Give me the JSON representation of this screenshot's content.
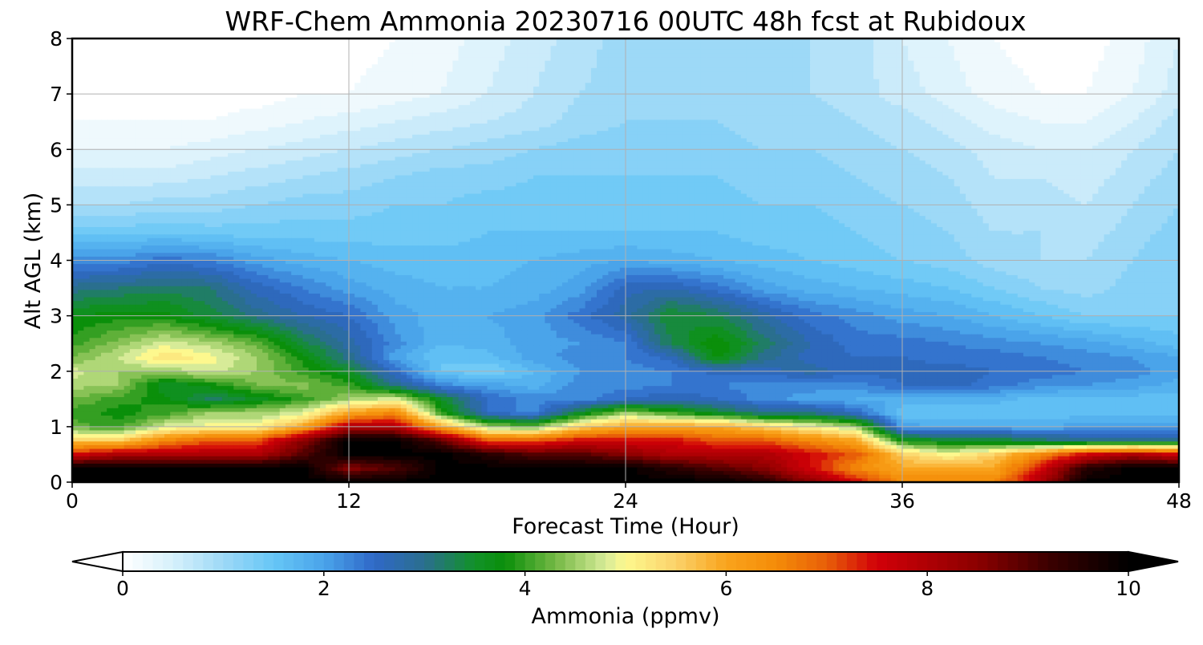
{
  "chart_data": {
    "type": "heatmap",
    "title": "WRF-Chem Ammonia  20230716 00UTC 48h fcst at Rubidoux",
    "xlabel": "Forecast Time (Hour)",
    "ylabel": "Alt AGL (km)",
    "xlim": [
      0,
      48
    ],
    "ylim": [
      0,
      8
    ],
    "x_ticks": [
      "0",
      "12",
      "24",
      "36",
      "48"
    ],
    "y_ticks": [
      "0",
      "1",
      "2",
      "3",
      "4",
      "5",
      "6",
      "7",
      "8"
    ],
    "grid": true,
    "colorbar": {
      "label": "Ammonia  (ppmv)",
      "range": [
        0,
        10
      ],
      "ticks": [
        "0",
        "2",
        "4",
        "6",
        "8",
        "10"
      ],
      "extend": "both",
      "colors": [
        {
          "v": 0.0,
          "c": "#ffffff"
        },
        {
          "v": 0.5,
          "c": "#d6f0fb"
        },
        {
          "v": 1.0,
          "c": "#9dd9f7"
        },
        {
          "v": 1.5,
          "c": "#66c6f6"
        },
        {
          "v": 2.0,
          "c": "#4aa4ea"
        },
        {
          "v": 2.5,
          "c": "#2f68c7"
        },
        {
          "v": 3.0,
          "c": "#2a6f8e"
        },
        {
          "v": 3.5,
          "c": "#129129"
        },
        {
          "v": 3.8,
          "c": "#0a8f0a"
        },
        {
          "v": 4.3,
          "c": "#74b845"
        },
        {
          "v": 4.8,
          "c": "#d7eb98"
        },
        {
          "v": 5.0,
          "c": "#fdf88e"
        },
        {
          "v": 5.5,
          "c": "#fbd26a"
        },
        {
          "v": 6.0,
          "c": "#f9a31c"
        },
        {
          "v": 6.5,
          "c": "#f48c08"
        },
        {
          "v": 7.0,
          "c": "#e85e08"
        },
        {
          "v": 7.5,
          "c": "#d10008"
        },
        {
          "v": 8.5,
          "c": "#8c0000"
        },
        {
          "v": 9.2,
          "c": "#3c0000"
        },
        {
          "v": 10.0,
          "c": "#000000"
        }
      ]
    },
    "field": {
      "x_hours": [
        0,
        2,
        4,
        6,
        8,
        10,
        12,
        14,
        16,
        18,
        20,
        22,
        24,
        26,
        28,
        30,
        32,
        34,
        36,
        38,
        40,
        42,
        44,
        46,
        48
      ],
      "z_km": [
        0,
        0.25,
        0.5,
        0.75,
        1.0,
        1.25,
        1.5,
        1.75,
        2.0,
        2.25,
        2.5,
        3.0,
        3.5,
        4.0,
        4.5,
        5.0,
        5.5,
        6.0,
        6.5,
        7.0,
        8.0
      ],
      "ppmv": [
        [
          10,
          10,
          10,
          10,
          10,
          10,
          10,
          10,
          10,
          10,
          10,
          10,
          10,
          10,
          10,
          9.5,
          8.5,
          7.5,
          6.5,
          6.5,
          6.5,
          8.0,
          10,
          10,
          10
        ],
        [
          10,
          10,
          10,
          10,
          10,
          10,
          8.5,
          9,
          10,
          10,
          10,
          10,
          10,
          9.5,
          9,
          8.5,
          7.5,
          6.5,
          6.0,
          6.0,
          6.0,
          7.5,
          9.5,
          10,
          10
        ],
        [
          7.5,
          8.0,
          8.0,
          8.0,
          8.0,
          9.0,
          10,
          10,
          10,
          9.5,
          9.0,
          9.0,
          8.5,
          8.0,
          8.0,
          8.0,
          7.5,
          7.0,
          5.5,
          5.0,
          5.5,
          6.5,
          7.5,
          8.0,
          7.5
        ],
        [
          5.5,
          5.5,
          6.5,
          7.0,
          7.0,
          8.5,
          10,
          10,
          9.0,
          7.0,
          7.0,
          7.5,
          7.5,
          7.5,
          7.0,
          7.0,
          6.5,
          6.0,
          3.8,
          3.5,
          3.5,
          3.2,
          3.0,
          3.0,
          3.0
        ],
        [
          4.2,
          4.0,
          4.8,
          5.0,
          5.0,
          6.0,
          8.0,
          8.0,
          6.0,
          4.5,
          4.2,
          5.5,
          6.0,
          6.0,
          6.0,
          5.5,
          5.0,
          4.5,
          2.0,
          1.9,
          1.9,
          1.9,
          2.0,
          2.0,
          2.0
        ],
        [
          4.0,
          3.8,
          4.0,
          4.5,
          4.5,
          4.8,
          6.0,
          6.5,
          4.0,
          2.5,
          2.2,
          3.5,
          4.5,
          4.0,
          3.5,
          3.0,
          3.0,
          2.5,
          1.5,
          1.5,
          1.5,
          1.5,
          1.6,
          1.6,
          1.6
        ],
        [
          4.3,
          4.0,
          3.8,
          3.2,
          3.6,
          4.0,
          4.5,
          4.8,
          3.5,
          2.5,
          2.2,
          2.2,
          2.5,
          2.7,
          2.5,
          2.2,
          2.0,
          1.9,
          1.9,
          1.8,
          1.8,
          1.6,
          1.6,
          1.6,
          1.6
        ],
        [
          4.6,
          4.5,
          3.5,
          3.8,
          4.3,
          4.4,
          4.0,
          3.0,
          2.2,
          2.0,
          1.8,
          2.2,
          2.2,
          2.3,
          2.3,
          2.2,
          2.2,
          2.2,
          2.5,
          2.6,
          2.4,
          2.2,
          2.1,
          2.0,
          1.8
        ],
        [
          4.8,
          4.5,
          4.5,
          4.8,
          4.5,
          4.0,
          3.5,
          2.5,
          1.5,
          1.3,
          1.7,
          2.1,
          2.2,
          2.3,
          2.6,
          2.6,
          2.8,
          2.6,
          2.6,
          2.6,
          2.5,
          2.4,
          2.3,
          2.2,
          2.0
        ],
        [
          4.3,
          4.7,
          5.3,
          5.0,
          4.5,
          3.8,
          3.0,
          2.0,
          1.5,
          1.6,
          2.0,
          2.2,
          2.3,
          2.6,
          3.8,
          3.0,
          2.6,
          2.5,
          2.5,
          2.4,
          2.4,
          2.3,
          2.2,
          2.1,
          1.9
        ],
        [
          4.0,
          4.4,
          4.8,
          4.6,
          4.2,
          3.4,
          2.8,
          2.2,
          1.7,
          1.8,
          2.0,
          2.1,
          2.3,
          3.3,
          3.9,
          3.2,
          2.7,
          2.4,
          2.4,
          2.3,
          2.2,
          2.1,
          2.0,
          1.8,
          1.6
        ],
        [
          3.7,
          3.8,
          3.8,
          3.4,
          3.0,
          2.7,
          2.5,
          2.0,
          1.8,
          1.9,
          2.0,
          2.4,
          2.8,
          3.5,
          3.3,
          2.8,
          2.4,
          2.2,
          2.0,
          1.9,
          1.7,
          1.5,
          1.3,
          1.3,
          1.3
        ],
        [
          3.0,
          3.1,
          3.2,
          3.1,
          2.6,
          2.3,
          2.0,
          1.8,
          1.7,
          1.7,
          1.8,
          2.0,
          2.6,
          2.7,
          2.4,
          2.0,
          1.8,
          1.7,
          1.6,
          1.5,
          1.3,
          1.1,
          1.0,
          1.2,
          1.3
        ],
        [
          2.2,
          2.2,
          2.4,
          2.3,
          2.0,
          1.8,
          1.7,
          1.6,
          1.6,
          1.6,
          1.7,
          1.8,
          1.9,
          1.8,
          1.7,
          1.6,
          1.5,
          1.4,
          1.3,
          1.2,
          1.0,
          0.9,
          0.9,
          1.1,
          1.3
        ],
        [
          1.4,
          1.4,
          1.5,
          1.4,
          1.4,
          1.4,
          1.4,
          1.4,
          1.4,
          1.5,
          1.5,
          1.5,
          1.5,
          1.5,
          1.5,
          1.4,
          1.4,
          1.3,
          1.2,
          1.1,
          0.9,
          0.9,
          0.8,
          1.0,
          1.2
        ],
        [
          0.9,
          0.9,
          1.0,
          1.0,
          1.1,
          1.2,
          1.2,
          1.3,
          1.3,
          1.4,
          1.4,
          1.4,
          1.4,
          1.4,
          1.4,
          1.3,
          1.3,
          1.2,
          1.1,
          1.0,
          0.8,
          0.8,
          0.7,
          0.9,
          1.1
        ],
        [
          0.6,
          0.6,
          0.6,
          0.7,
          0.8,
          0.9,
          1.0,
          1.1,
          1.2,
          1.2,
          1.3,
          1.3,
          1.3,
          1.3,
          1.3,
          1.2,
          1.2,
          1.1,
          1.0,
          0.9,
          0.7,
          0.7,
          0.6,
          0.8,
          1.0
        ],
        [
          0.3,
          0.3,
          0.3,
          0.4,
          0.5,
          0.6,
          0.7,
          0.8,
          0.9,
          1.0,
          1.1,
          1.2,
          1.2,
          1.2,
          1.2,
          1.1,
          1.1,
          1.0,
          0.9,
          0.8,
          0.6,
          0.5,
          0.5,
          0.7,
          0.9
        ],
        [
          0.1,
          0.1,
          0.1,
          0.1,
          0.2,
          0.3,
          0.4,
          0.5,
          0.6,
          0.7,
          0.8,
          1.0,
          1.1,
          1.1,
          1.1,
          1.0,
          1.0,
          0.9,
          0.8,
          0.6,
          0.4,
          0.3,
          0.3,
          0.5,
          0.8
        ],
        [
          0.0,
          0.0,
          0.0,
          0.0,
          0.0,
          0.1,
          0.1,
          0.2,
          0.3,
          0.5,
          0.7,
          0.9,
          1.0,
          1.0,
          1.0,
          1.0,
          0.9,
          0.8,
          0.6,
          0.4,
          0.2,
          0.1,
          0.1,
          0.3,
          0.6
        ],
        [
          0.0,
          0.0,
          0.0,
          0.0,
          0.0,
          0.0,
          0.0,
          0.1,
          0.2,
          0.4,
          0.6,
          0.8,
          1.0,
          1.1,
          1.0,
          1.0,
          0.9,
          0.8,
          0.5,
          0.3,
          0.1,
          0.0,
          0.0,
          0.2,
          0.5
        ]
      ]
    }
  }
}
